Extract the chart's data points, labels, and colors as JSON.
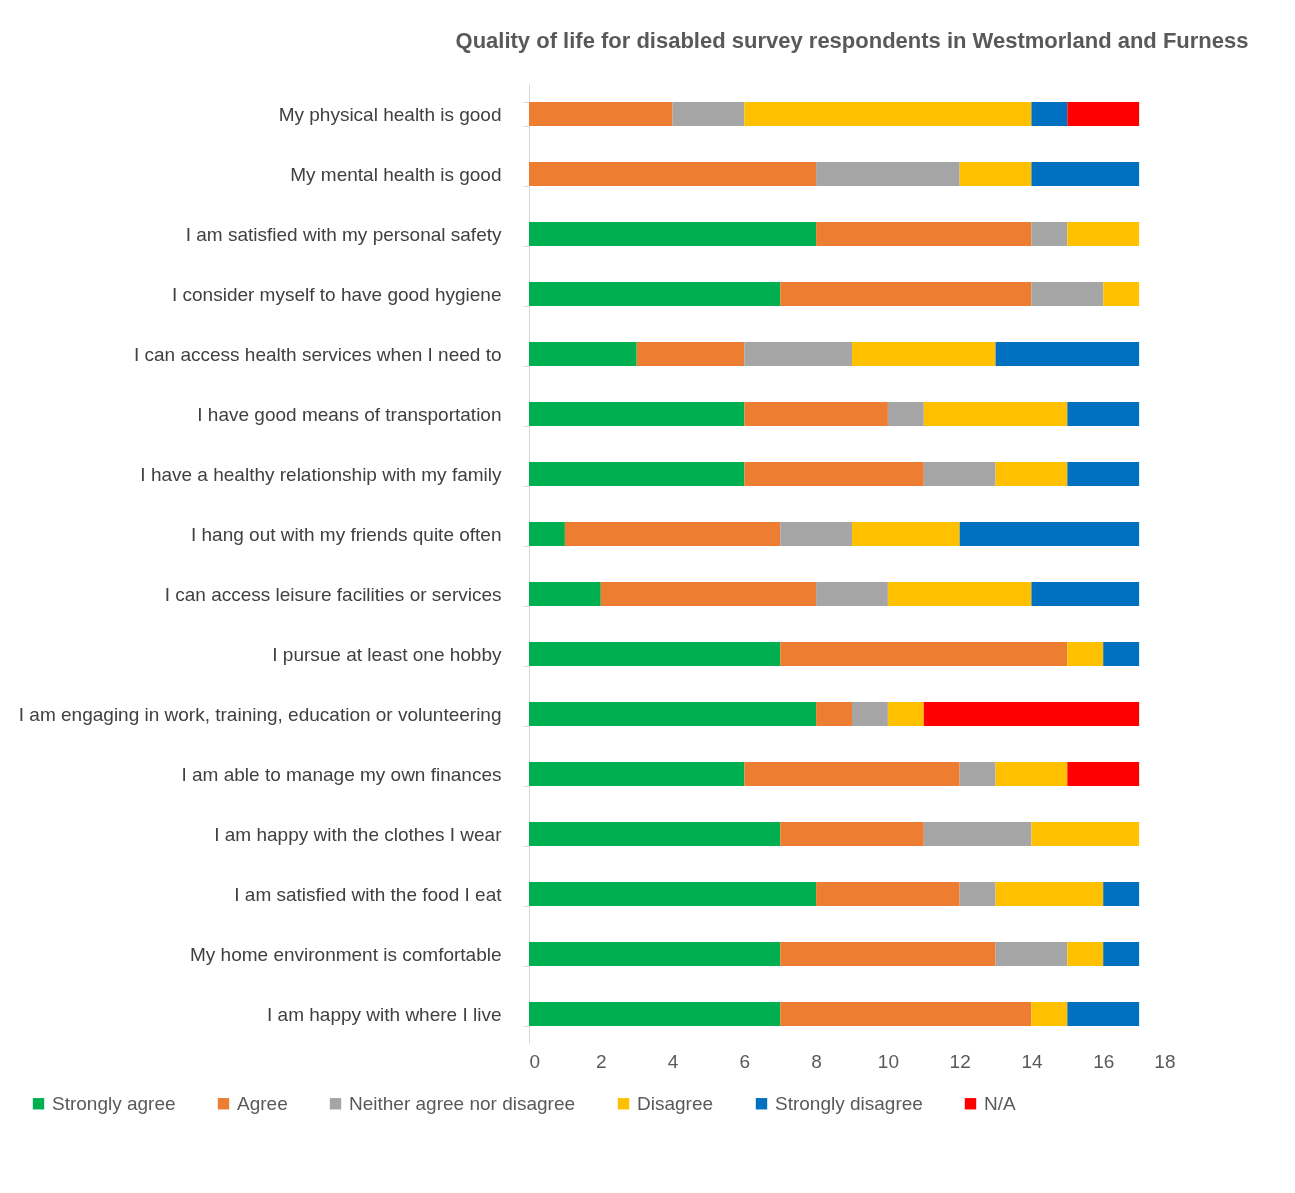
{
  "chart_data": {
    "type": "bar",
    "orientation": "horizontal",
    "stacked": true,
    "title": "Quality of life for disabled survey respondents in Westmorland and Furness",
    "categories": [
      "My physical health is good",
      "My mental health is good",
      "I am satisfied with my personal safety",
      "I consider myself to have good hygiene",
      "I can access health services when I need to",
      "I have good means of transportation",
      "I have a healthy relationship with my family",
      "I hang out with my friends quite often",
      "I can access leisure facilities or services",
      "I pursue at least one hobby",
      "I am engaging in work, training, education or volunteering",
      "I am able to manage my own finances",
      "I am happy with the clothes I wear",
      "I am satisfied with the food I eat",
      "My home environment is comfortable",
      "I am happy with where I live"
    ],
    "series": [
      {
        "name": "Strongly agree",
        "color": "#00b050",
        "values": [
          0,
          0,
          8,
          7,
          3,
          6,
          6,
          1,
          2,
          7,
          8,
          6,
          7,
          8,
          7,
          7
        ]
      },
      {
        "name": "Agree",
        "color": "#ed7d31",
        "values": [
          4,
          8,
          6,
          7,
          3,
          4,
          5,
          6,
          6,
          8,
          1,
          6,
          4,
          4,
          6,
          7
        ]
      },
      {
        "name": "Neither agree nor disagree",
        "color": "#a5a5a5",
        "values": [
          2,
          4,
          1,
          2,
          3,
          1,
          2,
          2,
          2,
          0,
          1,
          1,
          3,
          1,
          2,
          0
        ]
      },
      {
        "name": "Disagree",
        "color": "#ffc000",
        "values": [
          8,
          2,
          2,
          1,
          4,
          4,
          2,
          3,
          4,
          1,
          1,
          2,
          3,
          3,
          1,
          1
        ]
      },
      {
        "name": "Strongly disagree",
        "color": "#0070c0",
        "values": [
          1,
          3,
          0,
          0,
          4,
          2,
          2,
          5,
          3,
          1,
          0,
          0,
          0,
          1,
          1,
          2
        ]
      },
      {
        "name": "N/A",
        "color": "#ff0000",
        "values": [
          2,
          0,
          0,
          0,
          0,
          0,
          0,
          0,
          0,
          0,
          6,
          2,
          0,
          0,
          0,
          0
        ]
      }
    ],
    "xlim": [
      0,
      18
    ],
    "xticks": [
      0,
      2,
      4,
      6,
      8,
      10,
      12,
      14,
      16,
      18
    ],
    "grid": false,
    "legend": "bottom"
  }
}
